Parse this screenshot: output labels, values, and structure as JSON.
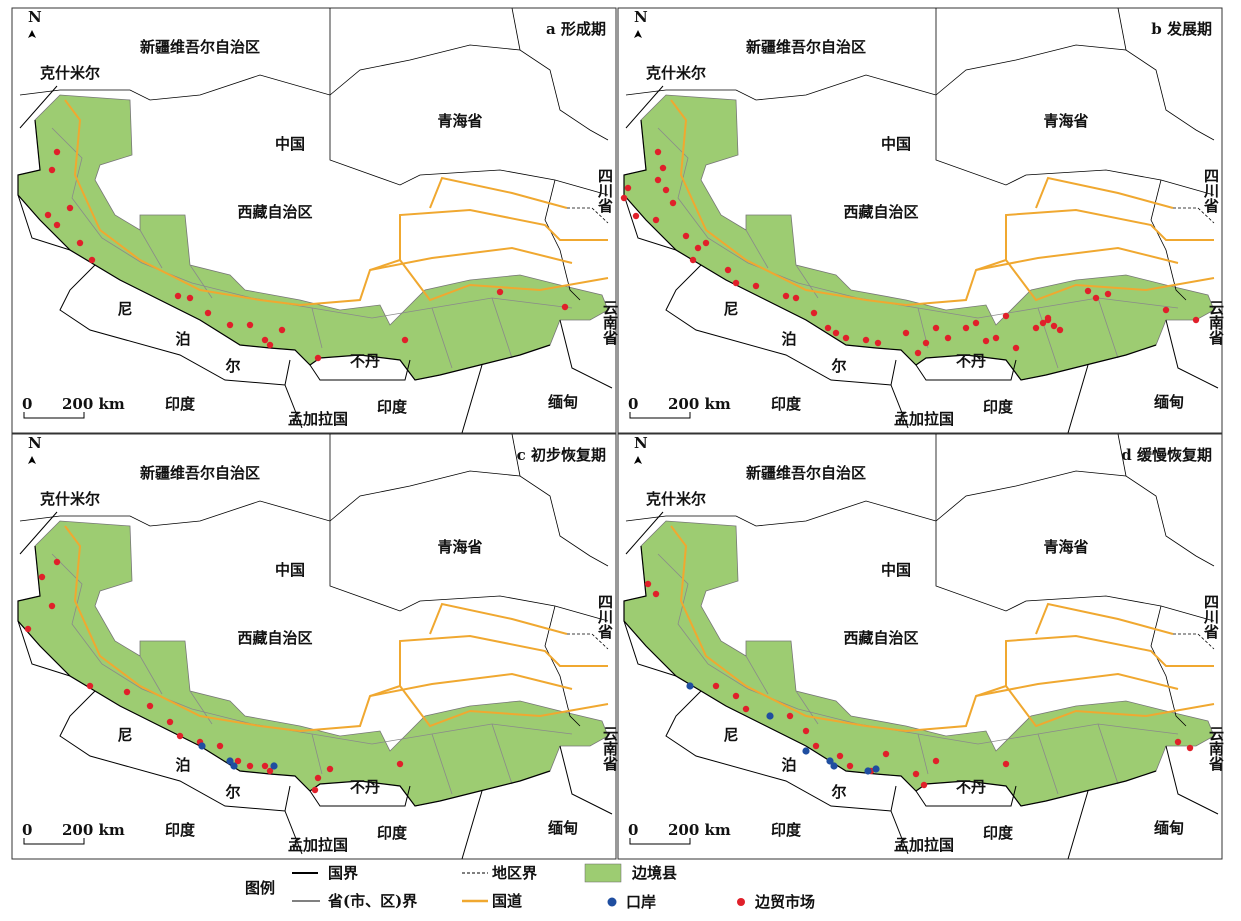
{
  "panels": [
    {
      "title": "a 形成期",
      "labels": {
        "north": "N",
        "xinjiang": "新疆维吾尔自治区",
        "kashmir": "克什米尔",
        "china": "中国",
        "qinghai": "青海省",
        "tibet": "西藏自治区",
        "sichuan": "四川省",
        "ni": "尼",
        "bo": "泊",
        "er": "尔",
        "bhutan": "不丹",
        "india1": "印度",
        "india2": "印度",
        "bangladesh": "孟加拉国",
        "myanmar": "缅甸",
        "yunnan": "云南省",
        "scale0": "0",
        "scale200": "200 km"
      }
    },
    {
      "title": "b 发展期",
      "labels": {
        "north": "N",
        "xinjiang": "新疆维吾尔自治区",
        "kashmir": "克什米尔",
        "china": "中国",
        "qinghai": "青海省",
        "tibet": "西藏自治区",
        "sichuan": "四川省",
        "ni": "尼",
        "bo": "泊",
        "er": "尔",
        "bhutan": "不丹",
        "india1": "印度",
        "india2": "印度",
        "bangladesh": "孟加拉国",
        "myanmar": "缅甸",
        "yunnan": "云南省",
        "scale0": "0",
        "scale200": "200 km"
      }
    },
    {
      "title": "c 初步恢复期",
      "labels": {
        "north": "N",
        "xinjiang": "新疆维吾尔自治区",
        "kashmir": "克什米尔",
        "china": "中国",
        "qinghai": "青海省",
        "tibet": "西藏自治区",
        "sichuan": "四川省",
        "ni": "尼",
        "bo": "泊",
        "er": "尔",
        "bhutan": "不丹",
        "india1": "印度",
        "india2": "印度",
        "bangladesh": "孟加拉国",
        "myanmar": "缅甸",
        "yunnan": "云南省",
        "scale0": "0",
        "scale200": "200 km"
      }
    },
    {
      "title": "d 缓慢恢复期",
      "labels": {
        "north": "N",
        "xinjiang": "新疆维吾尔自治区",
        "kashmir": "克什米尔",
        "china": "中国",
        "qinghai": "青海省",
        "tibet": "西藏自治区",
        "sichuan": "四川省",
        "ni": "尼",
        "bo": "泊",
        "er": "尔",
        "bhutan": "不丹",
        "india1": "印度",
        "india2": "印度",
        "bangladesh": "孟加拉国",
        "myanmar": "缅甸",
        "yunnan": "云南省",
        "scale0": "0",
        "scale200": "200 km"
      }
    }
  ],
  "legend": {
    "title": "图例",
    "national_border": "国界",
    "regional_border": "地区界",
    "border_county": "边境县",
    "provincial_border": "省(市、区)界",
    "national_road": "国道",
    "port": "口岸",
    "border_market": "边贸市场"
  }
}
